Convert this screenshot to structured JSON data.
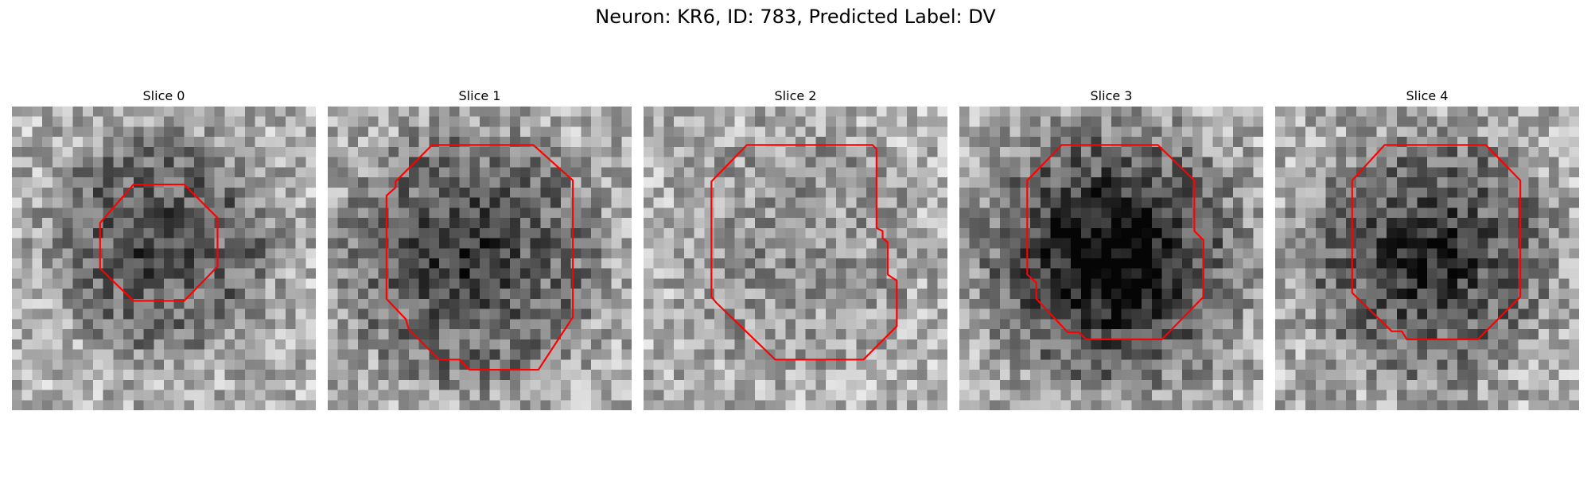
{
  "figure": {
    "title": "Neuron: KR6, ID: 783, Predicted Label: DV"
  },
  "style": {
    "contour_color": "#ff0000",
    "background": "#ffffff",
    "colormap": "grayscale"
  },
  "grid_size": 30,
  "panels": [
    {
      "title": "Slice 0",
      "seed": 11,
      "blob": {
        "cx": 14.5,
        "cy": 13.5,
        "r": 9,
        "strength": 0.45,
        "ring": 0.15
      },
      "contour": [
        [
          12,
          7.7
        ],
        [
          17,
          7.7
        ],
        [
          20.3,
          11
        ],
        [
          20.3,
          15.8
        ],
        [
          17,
          19.2
        ],
        [
          12,
          19.2
        ],
        [
          8.7,
          16
        ],
        [
          8.7,
          11.5
        ]
      ]
    },
    {
      "title": "Slice 1",
      "seed": 23,
      "blob": {
        "cx": 14,
        "cy": 15,
        "r": 11,
        "strength": 0.5,
        "ring": 0.1
      },
      "contour": [
        [
          10.3,
          3.8
        ],
        [
          20.3,
          3.8
        ],
        [
          24.2,
          7.3
        ],
        [
          24.2,
          20.8
        ],
        [
          20.8,
          26
        ],
        [
          14,
          26
        ],
        [
          13,
          25
        ],
        [
          11,
          25
        ],
        [
          8,
          22
        ],
        [
          7.7,
          21
        ],
        [
          5.8,
          19
        ],
        [
          5.8,
          8.8
        ],
        [
          6.7,
          8
        ],
        [
          6.7,
          7.4
        ]
      ]
    },
    {
      "title": "Slice 2",
      "seed": 37,
      "blob": {
        "cx": 15,
        "cy": 14,
        "r": 10,
        "strength": 0.15,
        "ring": 0.05
      },
      "contour": [
        [
          10.2,
          3.8
        ],
        [
          22.6,
          3.8
        ],
        [
          23,
          4.2
        ],
        [
          23,
          7.4
        ],
        [
          23,
          12
        ],
        [
          23.6,
          12.3
        ],
        [
          23.6,
          13
        ],
        [
          24.1,
          13.4
        ],
        [
          24.1,
          16.6
        ],
        [
          25,
          17.2
        ],
        [
          25,
          21.7
        ],
        [
          21.7,
          25
        ],
        [
          13,
          25
        ],
        [
          7.2,
          19.4
        ],
        [
          6.7,
          18.8
        ],
        [
          6.7,
          7.4
        ]
      ]
    },
    {
      "title": "Slice 3",
      "seed": 51,
      "blob": {
        "cx": 15,
        "cy": 15,
        "r": 11.5,
        "strength": 0.75,
        "ring": 0.05
      },
      "contour": [
        [
          10.1,
          3.8
        ],
        [
          19.6,
          3.8
        ],
        [
          23.2,
          7.3
        ],
        [
          23.2,
          12.3
        ],
        [
          24.1,
          13.2
        ],
        [
          24.1,
          18.8
        ],
        [
          20,
          23
        ],
        [
          12.5,
          23
        ],
        [
          11.8,
          22.3
        ],
        [
          10.7,
          22.3
        ],
        [
          7.6,
          19
        ],
        [
          7.6,
          17.4
        ],
        [
          6.7,
          16.6
        ],
        [
          6.7,
          7.3
        ]
      ]
    },
    {
      "title": "Slice 4",
      "seed": 67,
      "blob": {
        "cx": 15,
        "cy": 15,
        "r": 10.5,
        "strength": 0.55,
        "ring": 0.1
      },
      "contour": [
        [
          10.8,
          3.8
        ],
        [
          20.8,
          3.8
        ],
        [
          24.2,
          7.3
        ],
        [
          24.2,
          18.8
        ],
        [
          20,
          23
        ],
        [
          13,
          23
        ],
        [
          12.5,
          22.2
        ],
        [
          11.5,
          22.2
        ],
        [
          7.6,
          18.4
        ],
        [
          7.6,
          7.3
        ]
      ]
    }
  ]
}
